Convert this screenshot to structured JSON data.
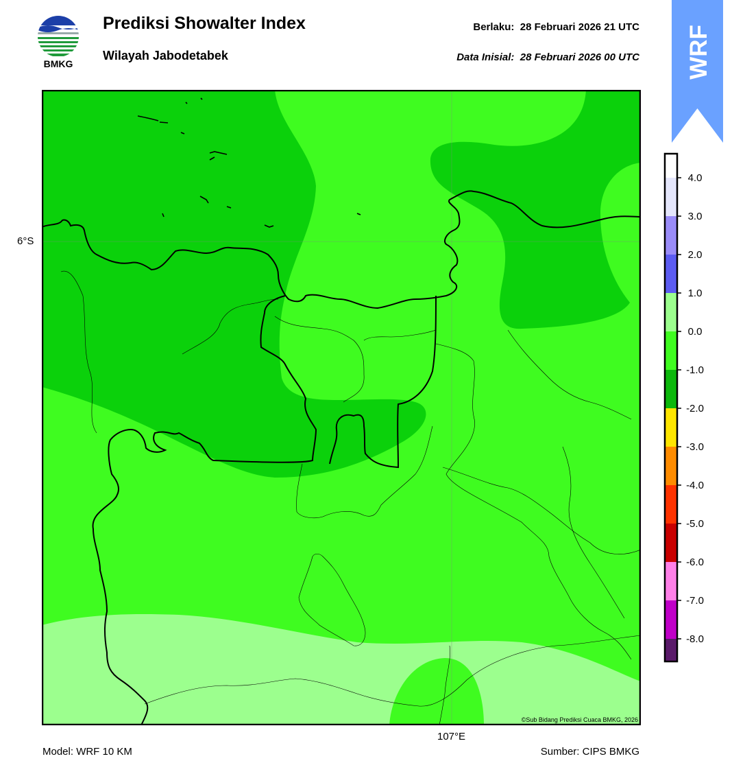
{
  "header": {
    "title": "Prediksi Showalter Index",
    "subtitle": "Wilayah Jabodetabek",
    "valid_label": "Berlaku:",
    "valid_value": "28 Februari 2026 21 UTC",
    "init_label": "Data Inisial:",
    "init_value": "28 Februari 2026 00 UTC"
  },
  "logo": {
    "text": "BMKG",
    "colors": {
      "blue": "#1c3fa8",
      "green": "#1f9a3a"
    }
  },
  "badge": {
    "text": "WRF",
    "color": "#6aa1ff"
  },
  "map": {
    "lat_label": "6°S",
    "lon_label": "107°E",
    "copyright": "©Sub Bidang Prediksi Cuaca BMKG, 2026",
    "colors": {
      "dark_green": "#0bd10b",
      "green": "#3ffc20",
      "light_green": "#9cff8e"
    }
  },
  "footer": {
    "model": "Model: WRF 10 KM",
    "source": "Sumber: CIPS BMKG"
  },
  "colorbar": {
    "tick_labels": [
      "4.0",
      "3.0",
      "2.0",
      "1.0",
      "0.0",
      "-1.0",
      "-2.0",
      "-3.0",
      "-4.0",
      "-5.0",
      "-6.0",
      "-7.0",
      "-8.0"
    ],
    "colors_top_to_bottom": [
      "#ffffff",
      "#e4e6fb",
      "#9a8cf8",
      "#5c5cf2",
      "#9cff8e",
      "#3ffc20",
      "#0bb80b",
      "#ffe600",
      "#ff8c00",
      "#ff3300",
      "#c90000",
      "#ff80e8",
      "#c000c8",
      "#5a1a6a"
    ]
  }
}
